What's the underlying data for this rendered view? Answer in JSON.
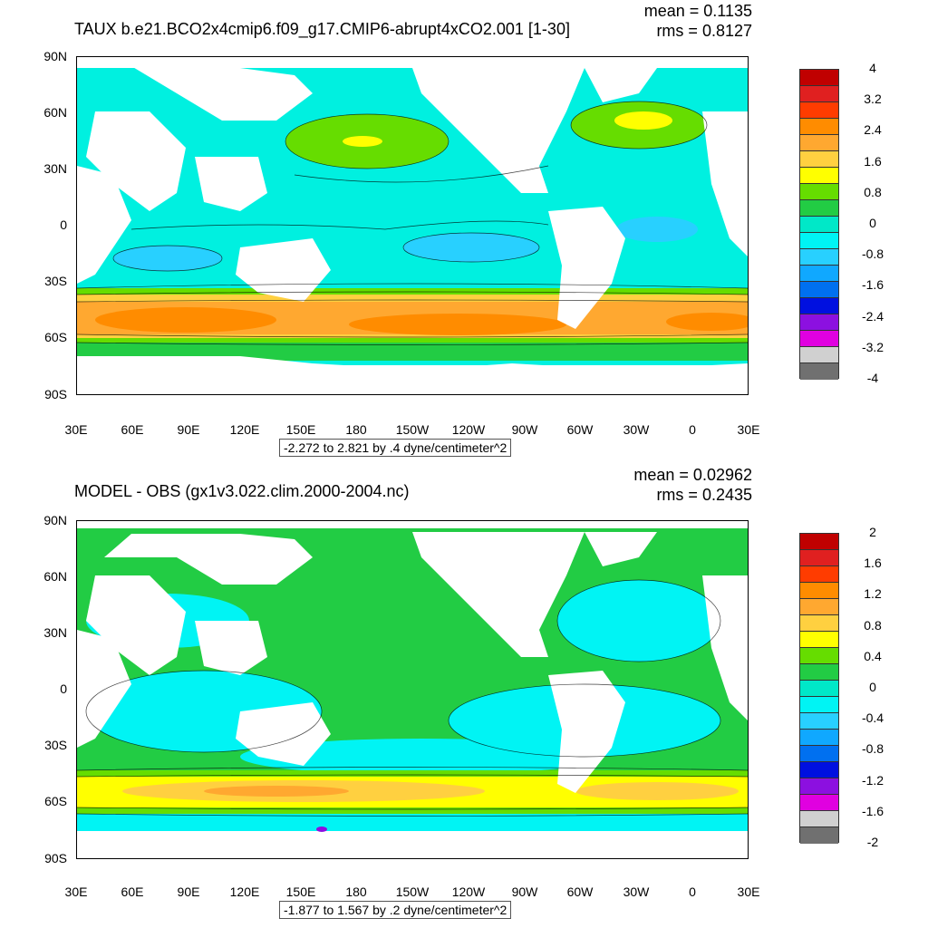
{
  "panels": [
    {
      "title": "TAUX b.e21.BCO2x4cmip6.f09_g17.CMIP6-abrupt4xCO2.001 [1-30]",
      "mean": "mean = 0.1135",
      "rms": "rms = 0.8127",
      "range_text": "-2.272 to 2.821 by .4 dyne/centimeter^2",
      "colorbar_labels": [
        "4",
        "3.2",
        "2.4",
        "1.6",
        "0.8",
        "0",
        "-0.8",
        "-1.6",
        "-2.4",
        "-3.2",
        "-4"
      ],
      "colorbar_colors": [
        "#c00000",
        "#e02020",
        "#ff3c00",
        "#ff8c00",
        "#ffa830",
        "#ffd040",
        "#ffff00",
        "#66dd00",
        "#22cc44",
        "#00e8c8",
        "#00f4f4",
        "#28d0ff",
        "#10a8ff",
        "#0070f0",
        "#0010e0",
        "#8c10e0",
        "#e000e0",
        "#d0d0d0",
        "#707070"
      ]
    },
    {
      "title": "MODEL - OBS (gx1v3.022.clim.2000-2004.nc)",
      "mean": "mean = 0.02962",
      "rms": "rms = 0.2435",
      "range_text": "-1.877 to 1.567 by .2 dyne/centimeter^2",
      "colorbar_labels": [
        "2",
        "1.6",
        "1.2",
        "0.8",
        "0.4",
        "0",
        "-0.4",
        "-0.8",
        "-1.2",
        "-1.6",
        "-2"
      ],
      "colorbar_colors": [
        "#c00000",
        "#e02020",
        "#ff3c00",
        "#ff8c00",
        "#ffa830",
        "#ffd040",
        "#ffff00",
        "#66dd00",
        "#22cc44",
        "#00e8c8",
        "#00f4f4",
        "#28d0ff",
        "#10a8ff",
        "#0070f0",
        "#0010e0",
        "#8c10e0",
        "#e000e0",
        "#d0d0d0",
        "#707070"
      ]
    }
  ],
  "lat_labels": [
    "90N",
    "60N",
    "30N",
    "0",
    "30S",
    "60S",
    "90S"
  ],
  "lon_labels": [
    "30E",
    "60E",
    "90E",
    "120E",
    "150E",
    "180",
    "150W",
    "120W",
    "90W",
    "60W",
    "30W",
    "0",
    "30E"
  ]
}
